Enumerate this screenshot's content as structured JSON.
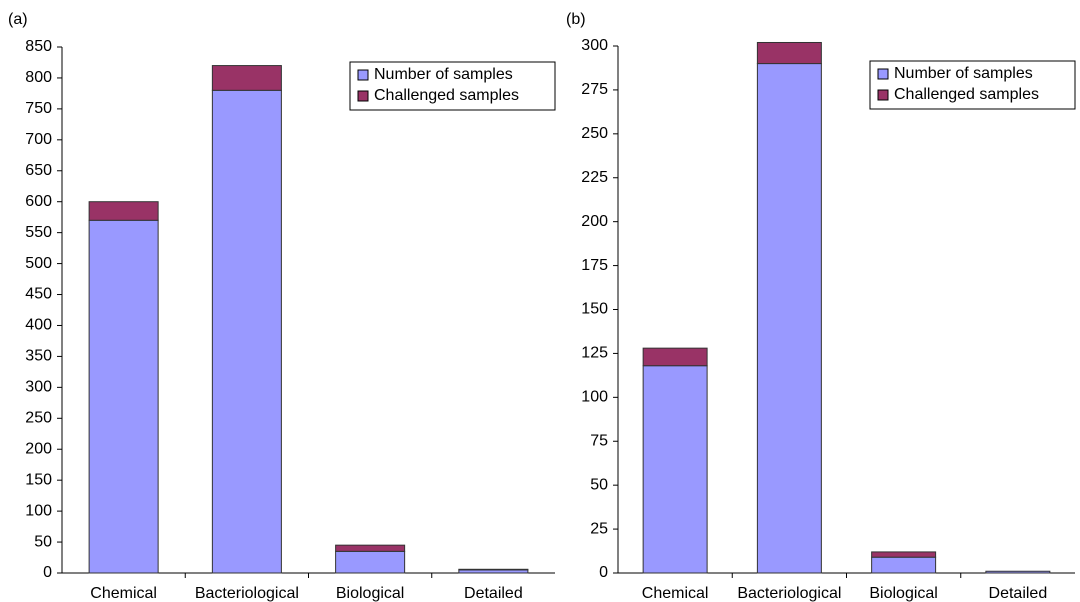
{
  "chart_data": [
    {
      "type": "bar",
      "stacked": true,
      "title": "(a)",
      "categories": [
        "Chemical",
        "Bacteriological",
        "Biological",
        "Detailed"
      ],
      "series": [
        {
          "name": "Number of samples",
          "color": "#9999ff",
          "values": [
            570,
            780,
            35,
            5
          ]
        },
        {
          "name": "Challenged samples",
          "color": "#993366",
          "values": [
            30,
            40,
            10,
            1
          ]
        }
      ],
      "ylim": [
        0,
        850
      ],
      "yticks": [
        0,
        50,
        100,
        150,
        200,
        250,
        300,
        350,
        400,
        450,
        500,
        550,
        600,
        650,
        700,
        750,
        800,
        850
      ],
      "grid": false,
      "legend": "upper right"
    },
    {
      "type": "bar",
      "stacked": true,
      "title": "(b)",
      "categories": [
        "Chemical",
        "Bacteriological",
        "Biological",
        "Detailed"
      ],
      "series": [
        {
          "name": "Number of samples",
          "color": "#9999ff",
          "values": [
            118,
            290,
            9,
            1
          ]
        },
        {
          "name": "Challenged samples",
          "color": "#993366",
          "values": [
            10,
            12,
            3,
            0
          ]
        }
      ],
      "ylim": [
        0,
        300
      ],
      "yticks": [
        0,
        25,
        50,
        75,
        100,
        125,
        150,
        175,
        200,
        225,
        250,
        275,
        300
      ],
      "grid": false,
      "legend": "upper right"
    }
  ]
}
